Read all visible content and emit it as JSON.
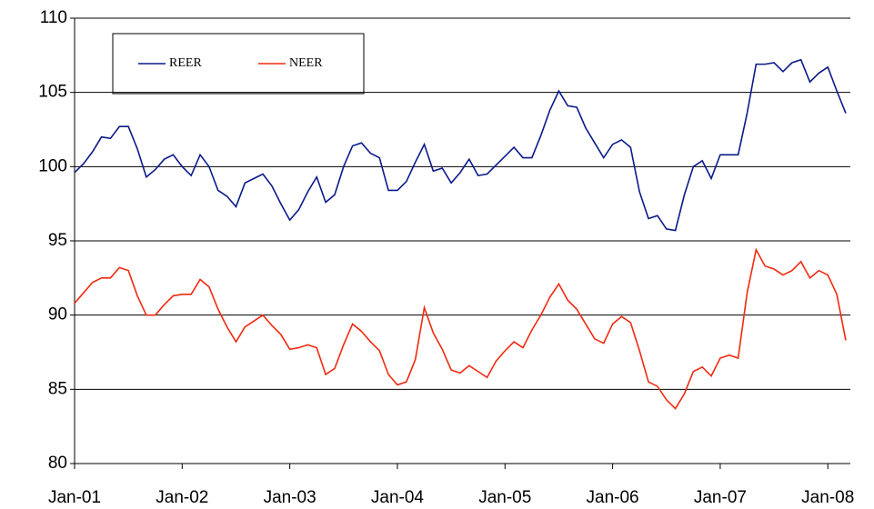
{
  "chart_data": {
    "type": "line",
    "categories": [
      "Jan-01",
      null,
      null,
      null,
      null,
      null,
      null,
      null,
      null,
      null,
      null,
      null,
      "Jan-02",
      null,
      null,
      null,
      null,
      null,
      null,
      null,
      null,
      null,
      null,
      null,
      "Jan-03",
      null,
      null,
      null,
      null,
      null,
      null,
      null,
      null,
      null,
      null,
      null,
      "Jan-04",
      null,
      null,
      null,
      null,
      null,
      null,
      null,
      null,
      null,
      null,
      null,
      "Jan-05",
      null,
      null,
      null,
      null,
      null,
      null,
      null,
      null,
      null,
      null,
      null,
      "Jan-06",
      null,
      null,
      null,
      null,
      null,
      null,
      null,
      null,
      null,
      null,
      null,
      "Jan-07",
      null,
      null,
      null,
      null,
      null,
      null,
      null,
      null,
      null,
      null,
      null,
      "Jan-08",
      null,
      null
    ],
    "series": [
      {
        "name": "REER",
        "color": "#0a1a8a",
        "values": [
          99.6,
          100.2,
          101.0,
          102.0,
          101.9,
          102.7,
          102.7,
          101.2,
          99.3,
          99.8,
          100.5,
          100.8,
          100.0,
          99.4,
          100.8,
          100.0,
          98.4,
          98.0,
          97.3,
          98.9,
          99.2,
          99.5,
          98.7,
          97.5,
          96.4,
          97.1,
          98.3,
          99.3,
          97.6,
          98.1,
          100.0,
          101.4,
          101.6,
          100.9,
          100.6,
          98.4,
          98.4,
          99.0,
          100.3,
          101.5,
          99.7,
          99.9,
          98.9,
          99.6,
          100.5,
          99.4,
          99.5,
          100.1,
          100.7,
          101.3,
          100.6,
          100.6,
          102.1,
          103.8,
          105.1,
          104.1,
          104.0,
          102.6,
          101.6,
          100.6,
          101.5,
          101.8,
          101.3,
          98.3,
          96.5,
          96.7,
          95.8,
          95.7,
          98.1,
          100.0,
          100.4,
          99.2,
          100.8,
          100.8,
          100.8,
          103.6,
          106.9,
          106.9,
          107.0,
          106.4,
          107.0,
          107.2,
          105.7,
          106.3,
          106.7,
          105.1,
          103.6
        ]
      },
      {
        "name": "NEER",
        "color": "#f02a10",
        "values": [
          90.8,
          91.5,
          92.2,
          92.5,
          92.5,
          93.2,
          93.0,
          91.3,
          90.0,
          90.0,
          90.7,
          91.3,
          91.4,
          91.4,
          92.4,
          91.9,
          90.4,
          89.2,
          88.2,
          89.2,
          89.6,
          90.0,
          89.3,
          88.7,
          87.7,
          87.8,
          88.0,
          87.8,
          86.0,
          86.4,
          88.0,
          89.4,
          88.9,
          88.2,
          87.6,
          86.0,
          85.3,
          85.5,
          87.0,
          90.5,
          88.8,
          87.7,
          86.3,
          86.1,
          86.6,
          86.2,
          85.8,
          86.9,
          87.6,
          88.2,
          87.8,
          89.0,
          90.0,
          91.2,
          92.1,
          91.0,
          90.4,
          89.4,
          88.4,
          88.1,
          89.4,
          89.9,
          89.5,
          87.6,
          85.5,
          85.2,
          84.3,
          83.7,
          84.7,
          86.2,
          86.5,
          85.9,
          87.1,
          87.3,
          87.1,
          91.5,
          94.4,
          93.3,
          93.1,
          92.7,
          93.0,
          93.6,
          92.5,
          93.0,
          92.7,
          91.4,
          88.3
        ]
      }
    ],
    "ylim": [
      80,
      110
    ],
    "yticks": [
      80,
      85,
      90,
      95,
      100,
      105,
      110
    ],
    "grid": true
  }
}
